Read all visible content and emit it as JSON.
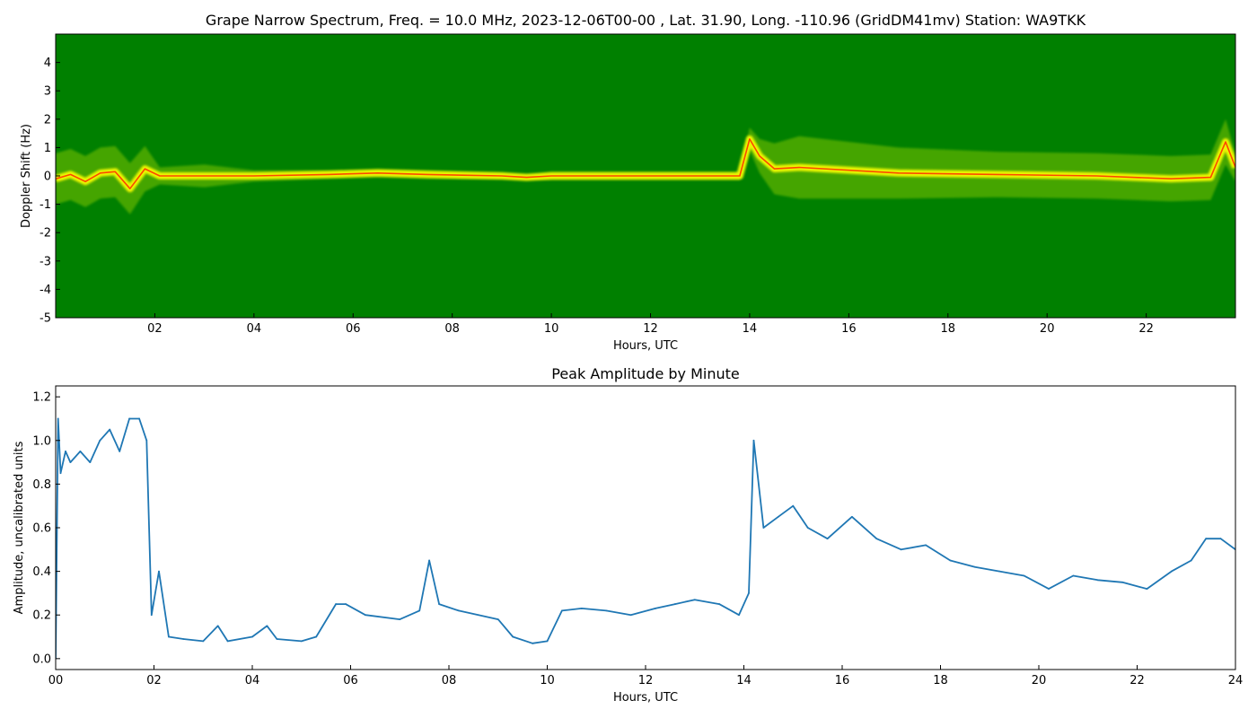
{
  "chart_data": [
    {
      "type": "heatmap",
      "title": "Grape Narrow Spectrum, Freq. = 10.0 MHz, 2023-12-06T00-00 , Lat.  31.90, Long. -110.96 (GridDM41mv) Station: WA9TKK",
      "xlabel": "Hours, UTC",
      "ylabel": "Doppler Shift (Hz)",
      "xlim": [
        0,
        23.8
      ],
      "ylim": [
        -5,
        5
      ],
      "x_ticks": [
        "02",
        "04",
        "06",
        "08",
        "10",
        "12",
        "14",
        "16",
        "18",
        "20",
        "22"
      ],
      "y_ticks": [
        "-5",
        "-4",
        "-3",
        "-2",
        "-1",
        "0",
        "1",
        "2",
        "3",
        "4"
      ],
      "colors": {
        "background": "#008000",
        "weak": "#7fc400",
        "strong": "#ffff00",
        "peak": "#ff2a00"
      },
      "trace": {
        "x": [
          0.0,
          0.3,
          0.6,
          0.9,
          1.2,
          1.5,
          1.8,
          2.1,
          3.0,
          4.0,
          5.5,
          6.5,
          7.5,
          9.0,
          9.5,
          10.0,
          12.0,
          13.8,
          14.0,
          14.2,
          14.5,
          15.0,
          17.0,
          19.0,
          21.0,
          22.5,
          23.3,
          23.6,
          23.8
        ],
        "y": [
          -0.1,
          0.05,
          -0.2,
          0.1,
          0.15,
          -0.45,
          0.25,
          0.0,
          0.0,
          0.0,
          0.05,
          0.1,
          0.05,
          0.0,
          -0.05,
          0.0,
          0.0,
          0.0,
          1.3,
          0.7,
          0.25,
          0.3,
          0.1,
          0.05,
          0.0,
          -0.1,
          -0.05,
          1.2,
          0.3
        ],
        "spread": [
          0.9,
          0.9,
          0.9,
          0.9,
          0.9,
          0.9,
          0.8,
          0.3,
          0.4,
          0.2,
          0.15,
          0.15,
          0.15,
          0.1,
          0.05,
          0.15,
          0.15,
          0.15,
          0.4,
          0.6,
          0.9,
          1.1,
          0.9,
          0.8,
          0.8,
          0.8,
          0.8,
          0.8,
          0.5
        ]
      }
    },
    {
      "type": "line",
      "title": "Peak Amplitude by Minute",
      "xlabel": "Hours, UTC",
      "ylabel": "Amplitude, uncalibrated units",
      "xlim": [
        0,
        24
      ],
      "ylim": [
        -0.05,
        1.25
      ],
      "x_ticks": [
        "00",
        "02",
        "04",
        "06",
        "08",
        "10",
        "12",
        "14",
        "16",
        "18",
        "20",
        "22",
        "24"
      ],
      "y_ticks": [
        "0.0",
        "0.2",
        "0.4",
        "0.6",
        "0.8",
        "1.0",
        "1.2"
      ],
      "color": "#1f77b4",
      "x": [
        0.0,
        0.05,
        0.1,
        0.2,
        0.3,
        0.5,
        0.7,
        0.9,
        1.1,
        1.3,
        1.5,
        1.7,
        1.85,
        1.95,
        2.1,
        2.3,
        2.6,
        3.0,
        3.3,
        3.5,
        4.0,
        4.3,
        4.5,
        5.0,
        5.3,
        5.7,
        5.9,
        6.3,
        7.0,
        7.4,
        7.6,
        7.8,
        8.2,
        8.6,
        9.0,
        9.3,
        9.7,
        10.0,
        10.3,
        10.7,
        11.2,
        11.7,
        12.2,
        12.6,
        13.0,
        13.5,
        13.9,
        14.1,
        14.2,
        14.4,
        14.7,
        15.0,
        15.3,
        15.7,
        16.2,
        16.7,
        17.2,
        17.7,
        18.2,
        18.7,
        19.2,
        19.7,
        20.2,
        20.7,
        21.2,
        21.7,
        22.2,
        22.7,
        23.1,
        23.4,
        23.7,
        24.0
      ],
      "y": [
        0.0,
        1.1,
        0.85,
        0.95,
        0.9,
        0.95,
        0.9,
        1.0,
        1.05,
        0.95,
        1.1,
        1.1,
        1.0,
        0.2,
        0.4,
        0.1,
        0.09,
        0.08,
        0.15,
        0.08,
        0.1,
        0.15,
        0.09,
        0.08,
        0.1,
        0.25,
        0.25,
        0.2,
        0.18,
        0.22,
        0.45,
        0.25,
        0.22,
        0.2,
        0.18,
        0.1,
        0.07,
        0.08,
        0.22,
        0.23,
        0.22,
        0.2,
        0.23,
        0.25,
        0.27,
        0.25,
        0.2,
        0.3,
        1.0,
        0.6,
        0.65,
        0.7,
        0.6,
        0.55,
        0.65,
        0.55,
        0.5,
        0.52,
        0.45,
        0.42,
        0.4,
        0.38,
        0.32,
        0.38,
        0.36,
        0.35,
        0.32,
        0.4,
        0.45,
        0.55,
        0.55,
        0.5
      ]
    }
  ]
}
